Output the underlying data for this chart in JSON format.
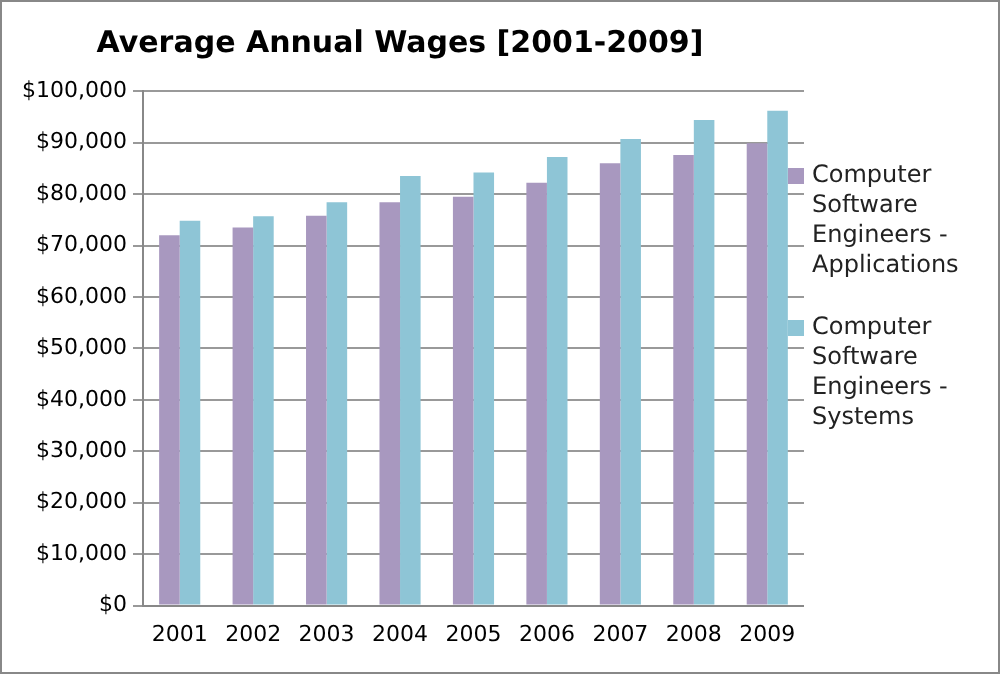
{
  "chart_data": {
    "type": "bar",
    "title": "Average Annual Wages [2001-2009]",
    "categories": [
      "2001",
      "2002",
      "2003",
      "2004",
      "2005",
      "2006",
      "2007",
      "2008",
      "2009"
    ],
    "series": [
      {
        "name": "Computer Software Engineers - Applications",
        "color": "#a898bf",
        "values": [
          72000,
          73500,
          75800,
          78400,
          79500,
          82200,
          86000,
          87600,
          89900
        ]
      },
      {
        "name": "Computer Software Engineers - Systems",
        "color": "#8ec5d6",
        "values": [
          74800,
          75700,
          78400,
          83500,
          84200,
          87200,
          90700,
          94400,
          96200
        ]
      }
    ],
    "ylim": [
      0,
      100000
    ],
    "yticks": [
      {
        "value": 0,
        "label": "$0"
      },
      {
        "value": 10000,
        "label": "$10,000"
      },
      {
        "value": 20000,
        "label": "$20,000"
      },
      {
        "value": 30000,
        "label": "$30,000"
      },
      {
        "value": 40000,
        "label": "$40,000"
      },
      {
        "value": 50000,
        "label": "$50,000"
      },
      {
        "value": 60000,
        "label": "$60,000"
      },
      {
        "value": 70000,
        "label": "$70,000"
      },
      {
        "value": 80000,
        "label": "$80,000"
      },
      {
        "value": 90000,
        "label": "$90,000"
      },
      {
        "value": 100000,
        "label": "$100,000"
      }
    ],
    "grid": "y",
    "legend": "right"
  }
}
